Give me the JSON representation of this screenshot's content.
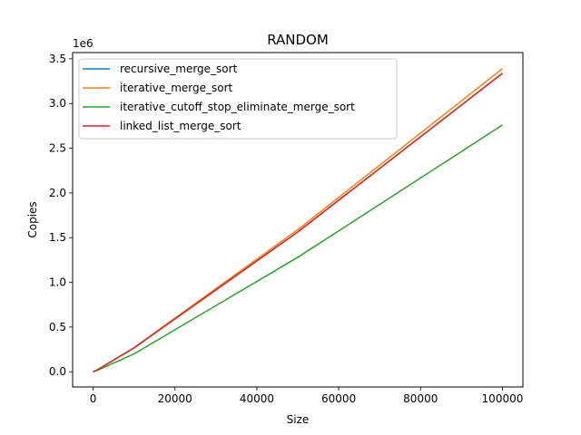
{
  "chart_data": {
    "type": "line",
    "title": "RANDOM",
    "xlabel": "Size",
    "ylabel": "Copies",
    "y_offset_label": "1e6",
    "xlim": [
      -5000,
      105000
    ],
    "ylim": [
      -170000,
      3570000
    ],
    "x_ticks": [
      0,
      20000,
      40000,
      60000,
      80000,
      100000
    ],
    "x_tick_labels": [
      "0",
      "20000",
      "40000",
      "60000",
      "80000",
      "100000"
    ],
    "y_ticks": [
      0,
      500000,
      1000000,
      1500000,
      2000000,
      2500000,
      3000000,
      3500000
    ],
    "y_tick_labels": [
      "0.0",
      "0.5",
      "1.0",
      "1.5",
      "2.0",
      "2.5",
      "3.0",
      "3.5"
    ],
    "grid": false,
    "legend_position": "top-left",
    "x": [
      0,
      100,
      1000,
      10000,
      50000,
      100000
    ],
    "series": [
      {
        "name": "recursive_merge_sort",
        "color": "#1f77b4",
        "values": [
          0,
          1344,
          19952,
          267232,
          1563904,
          3337856
        ]
      },
      {
        "name": "iterative_merge_sort",
        "color": "#ff7f0e",
        "values": [
          0,
          1400,
          20000,
          270000,
          1590000,
          3390000
        ]
      },
      {
        "name": "iterative_cutoff_stop_eliminate_merge_sort",
        "color": "#2ca02c",
        "values": [
          0,
          800,
          15000,
          200000,
          1280000,
          2760000
        ]
      },
      {
        "name": "linked_list_merge_sort",
        "color": "#d62728",
        "values": [
          0,
          1344,
          19952,
          267232,
          1563904,
          3337856
        ]
      }
    ]
  }
}
